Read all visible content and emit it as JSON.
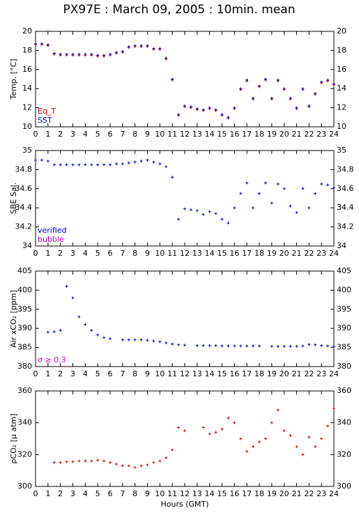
{
  "chart_data": [
    {
      "type": "scatter",
      "title": "PX97E : March 09, 2005 : 10min. mean",
      "ylabel": "Temp. [°C]",
      "x": [
        0,
        0.5,
        1,
        1.5,
        2,
        2.5,
        3,
        3.5,
        4,
        4.5,
        5,
        5.5,
        6,
        6.5,
        7,
        7.5,
        8,
        8.5,
        9,
        9.5,
        10,
        10.5,
        11,
        11.5,
        12,
        12.5,
        13,
        13.5,
        14,
        14.5,
        15,
        15.5,
        16,
        16.5,
        17,
        17.5,
        18,
        18.5,
        19,
        19.5,
        20,
        20.5,
        21,
        21.5,
        22,
        22.5,
        23,
        23.5,
        24
      ],
      "series": [
        {
          "name": "Eq_T",
          "color": "#cc0000",
          "values": [
            18.6,
            18.6,
            18.5,
            17.6,
            17.5,
            17.5,
            17.5,
            17.5,
            17.5,
            17.5,
            17.4,
            17.4,
            17.5,
            17.7,
            17.8,
            18.3,
            18.4,
            18.4,
            18.4,
            18.1,
            18.1,
            17.1,
            14.9,
            11.2,
            12.1,
            12,
            11.8,
            11.7,
            11.9,
            11.7,
            11.2,
            10.9,
            11.9,
            13.9,
            14.8,
            12.9,
            14.2,
            14.9,
            12.9,
            14.8,
            13.9,
            12.9,
            11.9,
            13.9,
            12.1,
            13.4,
            14.6,
            14.8,
            14.4
          ]
        },
        {
          "name": "SST",
          "color": "#0000cc",
          "values": [
            18.7,
            18.7,
            18.6,
            17.7,
            17.6,
            17.6,
            17.6,
            17.6,
            17.6,
            17.6,
            17.5,
            17.5,
            17.6,
            17.8,
            17.9,
            18.4,
            18.5,
            18.5,
            18.5,
            18.2,
            18.2,
            17.2,
            15,
            11.3,
            12.2,
            12.1,
            11.9,
            11.8,
            12,
            11.8,
            11.3,
            11,
            12,
            14,
            14.9,
            13,
            14.3,
            15,
            13,
            14.9,
            14,
            13,
            12,
            14,
            12.2,
            13.5,
            14.7,
            14.9,
            14.5
          ]
        }
      ],
      "xlim": [
        0,
        24
      ],
      "xticks": [
        0,
        1,
        2,
        3,
        4,
        5,
        6,
        7,
        8,
        9,
        10,
        11,
        12,
        13,
        14,
        15,
        16,
        17,
        18,
        19,
        20,
        21,
        22,
        23,
        24
      ],
      "ylim": [
        10,
        20
      ],
      "yticks": [
        10,
        12,
        14,
        16,
        18,
        20
      ],
      "annotations": [
        {
          "text": "Eq_T",
          "color": "#cc0000"
        },
        {
          "text": "SST",
          "color": "#0000cc"
        }
      ]
    },
    {
      "type": "scatter",
      "ylabel": "SBE Sal.",
      "x": [
        0,
        0.5,
        1,
        1.5,
        2,
        2.5,
        3,
        3.5,
        4,
        4.5,
        5,
        5.5,
        6,
        6.5,
        7,
        7.5,
        8,
        8.5,
        9,
        9.5,
        10,
        10.5,
        11,
        11.5,
        12,
        12.5,
        13,
        13.5,
        14,
        14.5,
        15,
        15.5,
        16,
        16.5,
        17,
        17.5,
        18,
        18.5,
        19,
        19.5,
        20,
        20.5,
        21,
        21.5,
        22,
        22.5,
        23,
        23.5,
        24
      ],
      "series": [
        {
          "name": "verified",
          "color": "#0000cc",
          "values": [
            34.9,
            34.9,
            34.89,
            34.85,
            34.85,
            34.85,
            34.85,
            34.85,
            34.85,
            34.85,
            34.85,
            34.85,
            34.85,
            34.86,
            34.86,
            34.87,
            34.88,
            34.89,
            34.9,
            34.88,
            34.86,
            34.83,
            34.72,
            34.28,
            34.39,
            34.38,
            34.37,
            34.33,
            34.36,
            34.34,
            34.28,
            34.24,
            34.4,
            34.55,
            34.66,
            34.4,
            34.55,
            34.66,
            34.45,
            34.65,
            34.6,
            34.42,
            34.35,
            34.6,
            34.4,
            34.55,
            34.65,
            34.64,
            34.61
          ]
        }
      ],
      "xlim": [
        0,
        24
      ],
      "xticks": [
        0,
        1,
        2,
        3,
        4,
        5,
        6,
        7,
        8,
        9,
        10,
        11,
        12,
        13,
        14,
        15,
        16,
        17,
        18,
        19,
        20,
        21,
        22,
        23,
        24
      ],
      "ylim": [
        34,
        35
      ],
      "yticks": [
        34,
        34.2,
        34.4,
        34.6,
        34.8,
        35
      ],
      "annotations": [
        {
          "text": "verified",
          "color": "#0000cc"
        },
        {
          "text": "bubble",
          "color": "#cc00cc"
        }
      ]
    },
    {
      "type": "scatter",
      "ylabel": "Air xCO₂ [ppm]",
      "x": [
        0,
        0.5,
        1,
        1.5,
        2,
        2.5,
        3,
        3.5,
        4,
        4.5,
        5,
        5.5,
        6,
        6.5,
        7,
        7.5,
        8,
        8.5,
        9,
        9.5,
        10,
        10.5,
        11,
        11.5,
        12,
        12.5,
        13,
        13.5,
        14,
        14.5,
        15,
        15.5,
        16,
        16.5,
        17,
        17.5,
        18,
        18.5,
        19,
        19.5,
        20,
        20.5,
        21,
        21.5,
        22,
        22.5,
        23,
        23.5,
        24
      ],
      "color": "#0000cc",
      "values": [
        null,
        null,
        389,
        389.1,
        389.5,
        401,
        398,
        393,
        391,
        389.5,
        388.3,
        387.6,
        387.3,
        null,
        387,
        387,
        387,
        387,
        386.9,
        386.7,
        386.5,
        386.2,
        385.9,
        385.7,
        385.6,
        null,
        385.5,
        385.5,
        385.5,
        385.5,
        385.4,
        385.4,
        385.4,
        385.4,
        385.4,
        385.4,
        385.4,
        null,
        385.3,
        385.3,
        385.3,
        385.3,
        385.3,
        385.4,
        385.8,
        385.7,
        385.5,
        385.4,
        385.3
      ],
      "xlim": [
        0,
        24
      ],
      "xticks": [
        0,
        1,
        2,
        3,
        4,
        5,
        6,
        7,
        8,
        9,
        10,
        11,
        12,
        13,
        14,
        15,
        16,
        17,
        18,
        19,
        20,
        21,
        22,
        23,
        24
      ],
      "ylim": [
        380,
        405
      ],
      "yticks": [
        380,
        385,
        390,
        395,
        400,
        405
      ],
      "annotations": [
        {
          "text": "σ ≥ 0.3",
          "color": "#cc00cc"
        }
      ]
    },
    {
      "type": "scatter",
      "ylabel": "ρCO₂ [µ atm]",
      "xlabel": "Hours (GMT)",
      "x": [
        0,
        0.5,
        1,
        1.5,
        2,
        2.5,
        3,
        3.5,
        4,
        4.5,
        5,
        5.5,
        6,
        6.5,
        7,
        7.5,
        8,
        8.5,
        9,
        9.5,
        10,
        10.5,
        11,
        11.5,
        12,
        12.5,
        13,
        13.5,
        14,
        14.5,
        15,
        15.5,
        16,
        16.5,
        17,
        17.5,
        18,
        18.5,
        19,
        19.5,
        20,
        20.5,
        21,
        21.5,
        22,
        22.5,
        23,
        23.5,
        24
      ],
      "color": "#cc0000",
      "values": [
        null,
        null,
        null,
        315,
        315,
        315.5,
        315.5,
        316,
        316,
        316,
        316.5,
        316,
        315,
        314,
        313,
        313,
        312,
        313,
        313.5,
        315,
        316,
        318,
        323,
        337,
        335,
        null,
        null,
        337,
        333,
        334,
        336,
        343,
        340,
        330,
        322,
        325,
        328,
        330,
        340,
        348,
        335,
        332,
        325,
        320,
        331,
        325,
        330,
        338,
        349
      ],
      "xlim": [
        0,
        24
      ],
      "xticks": [
        0,
        1,
        2,
        3,
        4,
        5,
        6,
        7,
        8,
        9,
        10,
        11,
        12,
        13,
        14,
        15,
        16,
        17,
        18,
        19,
        20,
        21,
        22,
        23,
        24
      ],
      "ylim": [
        300,
        360
      ],
      "yticks": [
        300,
        320,
        340,
        360
      ]
    }
  ]
}
